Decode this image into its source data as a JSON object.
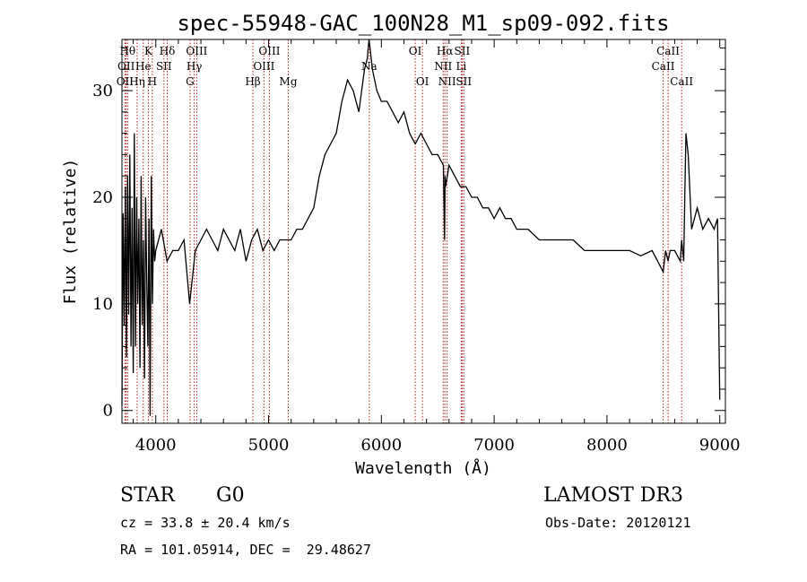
{
  "chart_data": {
    "type": "line",
    "title": "spec-55948-GAC_100N28_M1_sp09-092.fits",
    "xlabel": "Wavelength (Å)",
    "ylabel": "Flux (relative)",
    "xlim": [
      3700,
      9050
    ],
    "ylim": [
      -1.2,
      34.8
    ],
    "xticks": [
      4000,
      5000,
      6000,
      7000,
      8000,
      9000
    ],
    "yticks": [
      0,
      10,
      20,
      30
    ],
    "grid": false,
    "series": [
      {
        "name": "flux",
        "x": [
          3700,
          3710,
          3720,
          3730,
          3740,
          3750,
          3760,
          3770,
          3780,
          3790,
          3800,
          3810,
          3820,
          3830,
          3840,
          3850,
          3860,
          3870,
          3880,
          3890,
          3900,
          3910,
          3920,
          3930,
          3940,
          3950,
          3960,
          3970,
          3980,
          3990,
          4000,
          4050,
          4100,
          4150,
          4200,
          4250,
          4300,
          4350,
          4400,
          4450,
          4500,
          4550,
          4600,
          4650,
          4700,
          4750,
          4800,
          4850,
          4900,
          4950,
          5000,
          5050,
          5100,
          5150,
          5200,
          5250,
          5300,
          5350,
          5400,
          5450,
          5500,
          5550,
          5600,
          5650,
          5700,
          5750,
          5800,
          5850,
          5875,
          5890,
          5900,
          5910,
          5920,
          5940,
          5960,
          6000,
          6050,
          6100,
          6150,
          6200,
          6250,
          6300,
          6350,
          6400,
          6450,
          6500,
          6550,
          6560,
          6565,
          6570,
          6600,
          6650,
          6700,
          6750,
          6800,
          6850,
          6900,
          6950,
          7000,
          7050,
          7100,
          7150,
          7200,
          7300,
          7400,
          7500,
          7600,
          7700,
          7800,
          7900,
          8000,
          8100,
          8200,
          8300,
          8400,
          8450,
          8498,
          8520,
          8542,
          8560,
          8600,
          8650,
          8662,
          8680,
          8690,
          8700,
          8720,
          8750,
          8800,
          8850,
          8900,
          8950,
          8980,
          9000
        ],
        "values": [
          0.5,
          18.5,
          8,
          21,
          5,
          22,
          9,
          24,
          6,
          19,
          3.5,
          26,
          6,
          20,
          10,
          18,
          4,
          22,
          8,
          16,
          3,
          20,
          12,
          6,
          18,
          -0.5,
          22,
          10,
          17,
          14,
          15,
          17,
          14,
          15,
          15,
          16,
          10,
          15,
          16,
          17,
          16,
          15,
          17,
          16,
          15,
          17,
          14,
          16,
          17,
          15,
          16,
          15,
          16,
          16,
          16,
          17,
          17,
          18,
          19,
          22,
          24,
          25,
          26,
          29,
          31,
          30,
          28,
          32,
          33,
          35,
          34,
          33,
          32,
          31,
          30,
          29,
          29,
          28,
          27,
          28,
          26,
          25,
          26,
          25,
          24,
          24,
          23,
          16,
          22,
          21,
          23,
          22,
          21,
          21,
          20,
          20,
          19,
          19,
          18,
          19,
          18,
          18,
          17,
          17,
          16,
          16,
          16,
          16,
          15,
          15,
          15,
          15,
          15,
          14.5,
          15,
          14,
          13,
          15,
          14,
          15,
          15,
          14,
          16,
          14,
          20,
          26,
          24,
          17,
          19,
          17,
          18,
          17,
          18,
          1
        ]
      }
    ],
    "lines": [
      {
        "name": "OII",
        "wl": 3727,
        "row": 3
      },
      {
        "name": "OII",
        "wl": 3737,
        "row": 2
      },
      {
        "name": "Hθ",
        "wl": 3750,
        "row": 1
      },
      {
        "name": "Hη",
        "wl": 3835,
        "row": 3
      },
      {
        "name": "He",
        "wl": 3889,
        "row": 2
      },
      {
        "name": "K",
        "wl": 3934,
        "row": 1
      },
      {
        "name": "H",
        "wl": 3969,
        "row": 3
      },
      {
        "name": "SII",
        "wl": 4072,
        "row": 2
      },
      {
        "name": "Hδ",
        "wl": 4102,
        "row": 1
      },
      {
        "name": "G",
        "wl": 4304,
        "row": 3
      },
      {
        "name": "Hγ",
        "wl": 4341,
        "row": 2
      },
      {
        "name": "OIII",
        "wl": 4363,
        "row": 1
      },
      {
        "name": "Hβ",
        "wl": 4861,
        "row": 3
      },
      {
        "name": "OIII",
        "wl": 4959,
        "row": 2
      },
      {
        "name": "OIII",
        "wl": 5007,
        "row": 1
      },
      {
        "name": "Mg",
        "wl": 5175,
        "row": 3
      },
      {
        "name": "Na",
        "wl": 5893,
        "row": 2
      },
      {
        "name": "OI",
        "wl": 6300,
        "row": 1
      },
      {
        "name": "OI",
        "wl": 6364,
        "row": 3
      },
      {
        "name": "NII",
        "wl": 6548,
        "row": 2
      },
      {
        "name": "Hα",
        "wl": 6563,
        "row": 1
      },
      {
        "name": "NII",
        "wl": 6583,
        "row": 3
      },
      {
        "name": "Li",
        "wl": 6708,
        "row": 2
      },
      {
        "name": "SII",
        "wl": 6716,
        "row": 1
      },
      {
        "name": "SII",
        "wl": 6731,
        "row": 3
      },
      {
        "name": "CaII",
        "wl": 8498,
        "row": 2
      },
      {
        "name": "CaII",
        "wl": 8542,
        "row": 1
      },
      {
        "name": "CaII",
        "wl": 8662,
        "row": 3
      }
    ]
  },
  "info": {
    "class": "STAR",
    "subclass": "G0",
    "survey": "LAMOST DR3",
    "cz": "cz = 33.8 ± 20.4 km/s",
    "obsdate": "Obs-Date: 20120121",
    "radec": "RA = 101.05914, DEC =  29.48627"
  },
  "colors": {
    "line": "#000000",
    "marker": "#b22222"
  }
}
